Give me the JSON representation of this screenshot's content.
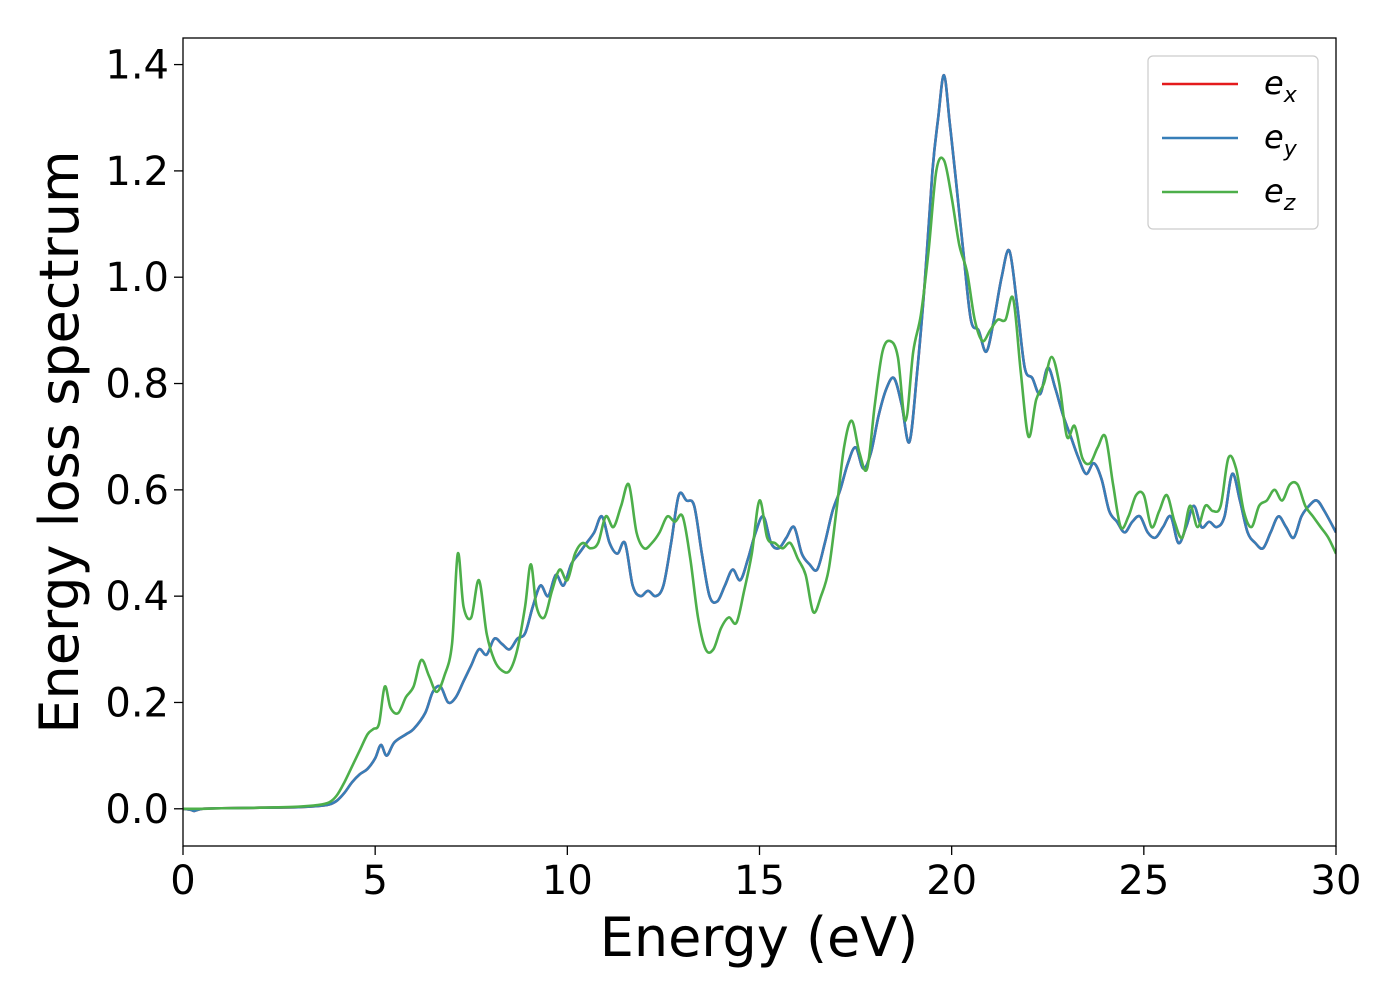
{
  "chart_data": {
    "type": "line",
    "title": "",
    "xlabel": "Energy (eV)",
    "ylabel": "Energy loss spectrum",
    "xlim": [
      0,
      30
    ],
    "ylim": [
      -0.07,
      1.45
    ],
    "xticks": [
      0,
      5,
      10,
      15,
      20,
      25,
      30
    ],
    "yticks": [
      0.0,
      0.2,
      0.4,
      0.6,
      0.8,
      1.0,
      1.2,
      1.4
    ],
    "xtick_labels": [
      "0",
      "5",
      "10",
      "15",
      "20",
      "25",
      "30"
    ],
    "ytick_labels": [
      "0.0",
      "0.2",
      "0.4",
      "0.6",
      "0.8",
      "1.0",
      "1.2",
      "1.4"
    ],
    "grid": false,
    "legend": {
      "position": "top-right",
      "entries": [
        {
          "base": "e",
          "sub": "x",
          "color": "#e41a1c"
        },
        {
          "base": "e",
          "sub": "y",
          "color": "#377eb8"
        },
        {
          "base": "e",
          "sub": "z",
          "color": "#4daf4a"
        }
      ]
    },
    "series": [
      {
        "name": "e_x",
        "color": "#e41a1c",
        "x": [
          0,
          0.2,
          0.3,
          0.5,
          1,
          2,
          3,
          3.5,
          3.8,
          4.0,
          4.2,
          4.4,
          4.6,
          4.8,
          5.0,
          5.15,
          5.3,
          5.5,
          5.8,
          6.0,
          6.3,
          6.5,
          6.7,
          6.9,
          7.1,
          7.3,
          7.5,
          7.7,
          7.9,
          8.1,
          8.3,
          8.5,
          8.7,
          8.9,
          9.1,
          9.3,
          9.5,
          9.7,
          9.9,
          10.1,
          10.3,
          10.5,
          10.7,
          10.9,
          11.1,
          11.3,
          11.5,
          11.7,
          11.9,
          12.1,
          12.3,
          12.5,
          12.7,
          12.9,
          13.1,
          13.3,
          13.5,
          13.7,
          13.9,
          14.1,
          14.3,
          14.5,
          14.7,
          14.9,
          15.1,
          15.3,
          15.5,
          15.7,
          15.9,
          16.1,
          16.3,
          16.5,
          16.7,
          16.9,
          17.1,
          17.3,
          17.5,
          17.7,
          17.9,
          18.1,
          18.3,
          18.5,
          18.7,
          18.9,
          19.1,
          19.3,
          19.5,
          19.65,
          19.8,
          19.95,
          20.1,
          20.3,
          20.5,
          20.7,
          20.9,
          21.1,
          21.3,
          21.5,
          21.7,
          21.9,
          22.1,
          22.3,
          22.5,
          22.7,
          22.9,
          23.1,
          23.3,
          23.5,
          23.7,
          23.9,
          24.1,
          24.3,
          24.5,
          24.7,
          24.9,
          25.1,
          25.3,
          25.5,
          25.7,
          25.9,
          26.1,
          26.3,
          26.5,
          26.7,
          26.9,
          27.1,
          27.3,
          27.5,
          27.7,
          27.9,
          28.1,
          28.3,
          28.5,
          28.7,
          28.9,
          29.1,
          29.3,
          29.5,
          29.7,
          30.0
        ],
        "y": [
          0.0,
          -0.002,
          -0.004,
          0.0,
          0.001,
          0.002,
          0.003,
          0.005,
          0.008,
          0.015,
          0.03,
          0.05,
          0.065,
          0.075,
          0.095,
          0.12,
          0.1,
          0.125,
          0.14,
          0.15,
          0.18,
          0.22,
          0.23,
          0.2,
          0.21,
          0.24,
          0.27,
          0.3,
          0.29,
          0.32,
          0.31,
          0.3,
          0.32,
          0.33,
          0.38,
          0.42,
          0.4,
          0.44,
          0.42,
          0.46,
          0.48,
          0.5,
          0.52,
          0.55,
          0.5,
          0.48,
          0.5,
          0.42,
          0.4,
          0.41,
          0.4,
          0.42,
          0.5,
          0.59,
          0.58,
          0.57,
          0.48,
          0.4,
          0.39,
          0.42,
          0.45,
          0.43,
          0.47,
          0.52,
          0.55,
          0.5,
          0.49,
          0.51,
          0.53,
          0.48,
          0.46,
          0.45,
          0.5,
          0.56,
          0.6,
          0.65,
          0.68,
          0.64,
          0.67,
          0.74,
          0.79,
          0.81,
          0.76,
          0.69,
          0.82,
          0.99,
          1.2,
          1.3,
          1.38,
          1.29,
          1.19,
          1.05,
          0.92,
          0.9,
          0.86,
          0.92,
          1.0,
          1.05,
          0.95,
          0.83,
          0.81,
          0.78,
          0.83,
          0.79,
          0.74,
          0.7,
          0.66,
          0.63,
          0.65,
          0.62,
          0.56,
          0.54,
          0.52,
          0.54,
          0.55,
          0.52,
          0.51,
          0.53,
          0.55,
          0.5,
          0.53,
          0.57,
          0.53,
          0.54,
          0.53,
          0.55,
          0.63,
          0.58,
          0.52,
          0.5,
          0.49,
          0.52,
          0.55,
          0.53,
          0.51,
          0.55,
          0.57,
          0.58,
          0.56,
          0.52
        ]
      },
      {
        "name": "e_y",
        "color": "#377eb8",
        "x": [
          0,
          0.2,
          0.3,
          0.5,
          1,
          2,
          3,
          3.5,
          3.8,
          4.0,
          4.2,
          4.4,
          4.6,
          4.8,
          5.0,
          5.15,
          5.3,
          5.5,
          5.8,
          6.0,
          6.3,
          6.5,
          6.7,
          6.9,
          7.1,
          7.3,
          7.5,
          7.7,
          7.9,
          8.1,
          8.3,
          8.5,
          8.7,
          8.9,
          9.1,
          9.3,
          9.5,
          9.7,
          9.9,
          10.1,
          10.3,
          10.5,
          10.7,
          10.9,
          11.1,
          11.3,
          11.5,
          11.7,
          11.9,
          12.1,
          12.3,
          12.5,
          12.7,
          12.9,
          13.1,
          13.3,
          13.5,
          13.7,
          13.9,
          14.1,
          14.3,
          14.5,
          14.7,
          14.9,
          15.1,
          15.3,
          15.5,
          15.7,
          15.9,
          16.1,
          16.3,
          16.5,
          16.7,
          16.9,
          17.1,
          17.3,
          17.5,
          17.7,
          17.9,
          18.1,
          18.3,
          18.5,
          18.7,
          18.9,
          19.1,
          19.3,
          19.5,
          19.65,
          19.8,
          19.95,
          20.1,
          20.3,
          20.5,
          20.7,
          20.9,
          21.1,
          21.3,
          21.5,
          21.7,
          21.9,
          22.1,
          22.3,
          22.5,
          22.7,
          22.9,
          23.1,
          23.3,
          23.5,
          23.7,
          23.9,
          24.1,
          24.3,
          24.5,
          24.7,
          24.9,
          25.1,
          25.3,
          25.5,
          25.7,
          25.9,
          26.1,
          26.3,
          26.5,
          26.7,
          26.9,
          27.1,
          27.3,
          27.5,
          27.7,
          27.9,
          28.1,
          28.3,
          28.5,
          28.7,
          28.9,
          29.1,
          29.3,
          29.5,
          29.7,
          30.0
        ],
        "y": [
          0.0,
          -0.002,
          -0.004,
          0.0,
          0.001,
          0.002,
          0.003,
          0.005,
          0.008,
          0.015,
          0.03,
          0.05,
          0.065,
          0.075,
          0.095,
          0.12,
          0.1,
          0.125,
          0.14,
          0.15,
          0.18,
          0.22,
          0.23,
          0.2,
          0.21,
          0.24,
          0.27,
          0.3,
          0.29,
          0.32,
          0.31,
          0.3,
          0.32,
          0.33,
          0.38,
          0.42,
          0.4,
          0.44,
          0.42,
          0.46,
          0.48,
          0.5,
          0.52,
          0.55,
          0.5,
          0.48,
          0.5,
          0.42,
          0.4,
          0.41,
          0.4,
          0.42,
          0.5,
          0.59,
          0.58,
          0.57,
          0.48,
          0.4,
          0.39,
          0.42,
          0.45,
          0.43,
          0.47,
          0.52,
          0.55,
          0.5,
          0.49,
          0.51,
          0.53,
          0.48,
          0.46,
          0.45,
          0.5,
          0.56,
          0.6,
          0.65,
          0.68,
          0.64,
          0.67,
          0.74,
          0.79,
          0.81,
          0.76,
          0.69,
          0.82,
          0.99,
          1.2,
          1.3,
          1.38,
          1.29,
          1.19,
          1.05,
          0.92,
          0.9,
          0.86,
          0.92,
          1.0,
          1.05,
          0.95,
          0.83,
          0.81,
          0.78,
          0.83,
          0.79,
          0.74,
          0.7,
          0.66,
          0.63,
          0.65,
          0.62,
          0.56,
          0.54,
          0.52,
          0.54,
          0.55,
          0.52,
          0.51,
          0.53,
          0.55,
          0.5,
          0.53,
          0.57,
          0.53,
          0.54,
          0.53,
          0.55,
          0.63,
          0.58,
          0.52,
          0.5,
          0.49,
          0.52,
          0.55,
          0.53,
          0.51,
          0.55,
          0.57,
          0.58,
          0.56,
          0.52
        ]
      },
      {
        "name": "e_z",
        "color": "#4daf4a",
        "x": [
          0,
          0.5,
          1,
          2,
          3,
          3.5,
          3.8,
          4.0,
          4.2,
          4.4,
          4.6,
          4.8,
          4.95,
          5.1,
          5.25,
          5.4,
          5.6,
          5.8,
          6.0,
          6.2,
          6.4,
          6.6,
          6.8,
          7.0,
          7.15,
          7.3,
          7.5,
          7.7,
          7.9,
          8.1,
          8.3,
          8.5,
          8.7,
          8.9,
          9.05,
          9.2,
          9.4,
          9.6,
          9.8,
          10.0,
          10.2,
          10.4,
          10.6,
          10.8,
          11.0,
          11.2,
          11.4,
          11.6,
          11.8,
          12.0,
          12.2,
          12.4,
          12.6,
          12.8,
          13.0,
          13.2,
          13.4,
          13.6,
          13.8,
          14.0,
          14.2,
          14.4,
          14.6,
          14.8,
          15.0,
          15.2,
          15.4,
          15.6,
          15.8,
          16.0,
          16.2,
          16.4,
          16.6,
          16.8,
          17.0,
          17.2,
          17.4,
          17.6,
          17.8,
          18.0,
          18.2,
          18.4,
          18.6,
          18.8,
          19.0,
          19.2,
          19.4,
          19.6,
          19.8,
          20.0,
          20.2,
          20.4,
          20.6,
          20.8,
          21.0,
          21.2,
          21.4,
          21.6,
          21.8,
          22.0,
          22.2,
          22.4,
          22.6,
          22.8,
          23.0,
          23.2,
          23.4,
          23.6,
          23.8,
          24.0,
          24.2,
          24.4,
          24.6,
          24.8,
          25.0,
          25.2,
          25.4,
          25.6,
          25.8,
          26.0,
          26.2,
          26.4,
          26.6,
          26.8,
          27.0,
          27.2,
          27.4,
          27.6,
          27.8,
          28.0,
          28.2,
          28.4,
          28.6,
          28.8,
          29.0,
          29.2,
          29.4,
          29.6,
          29.8,
          30.0
        ],
        "y": [
          0.0,
          0.0,
          0.001,
          0.002,
          0.004,
          0.007,
          0.012,
          0.025,
          0.05,
          0.08,
          0.11,
          0.14,
          0.15,
          0.16,
          0.23,
          0.19,
          0.18,
          0.21,
          0.23,
          0.28,
          0.25,
          0.22,
          0.25,
          0.31,
          0.48,
          0.38,
          0.36,
          0.43,
          0.33,
          0.28,
          0.26,
          0.26,
          0.3,
          0.38,
          0.46,
          0.38,
          0.36,
          0.41,
          0.45,
          0.43,
          0.48,
          0.5,
          0.49,
          0.5,
          0.55,
          0.53,
          0.57,
          0.61,
          0.52,
          0.49,
          0.5,
          0.52,
          0.55,
          0.54,
          0.55,
          0.47,
          0.36,
          0.3,
          0.3,
          0.34,
          0.36,
          0.35,
          0.41,
          0.48,
          0.58,
          0.51,
          0.5,
          0.49,
          0.5,
          0.47,
          0.44,
          0.37,
          0.4,
          0.45,
          0.56,
          0.68,
          0.73,
          0.67,
          0.64,
          0.76,
          0.86,
          0.88,
          0.85,
          0.73,
          0.86,
          0.93,
          1.05,
          1.2,
          1.22,
          1.15,
          1.06,
          1.01,
          0.92,
          0.88,
          0.9,
          0.92,
          0.92,
          0.96,
          0.82,
          0.7,
          0.77,
          0.8,
          0.85,
          0.8,
          0.7,
          0.72,
          0.66,
          0.65,
          0.68,
          0.7,
          0.61,
          0.53,
          0.55,
          0.59,
          0.59,
          0.53,
          0.56,
          0.59,
          0.54,
          0.51,
          0.57,
          0.53,
          0.57,
          0.56,
          0.57,
          0.66,
          0.64,
          0.56,
          0.53,
          0.57,
          0.58,
          0.6,
          0.58,
          0.61,
          0.61,
          0.57,
          0.55,
          0.53,
          0.51,
          0.48
        ]
      }
    ]
  }
}
